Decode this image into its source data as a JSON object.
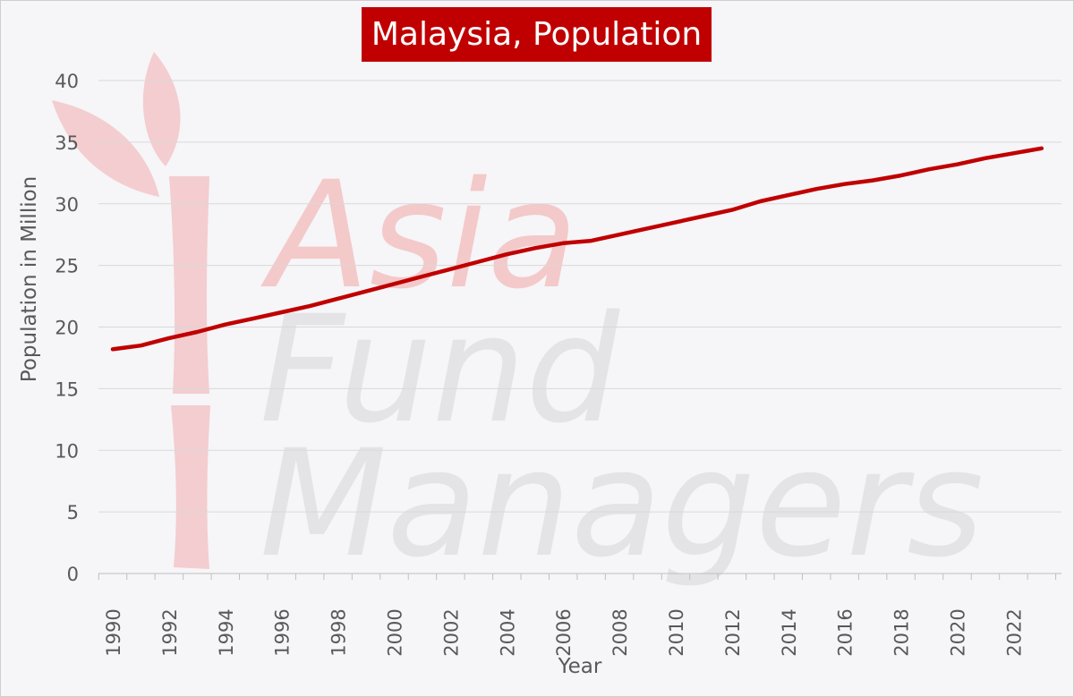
{
  "chart_data": {
    "type": "line",
    "title": "Malaysia, Population",
    "xlabel": "Year",
    "ylabel": "Population in Million",
    "xlim": [
      1990,
      2023
    ],
    "ylim": [
      0,
      40
    ],
    "yticks": [
      0,
      5,
      10,
      15,
      20,
      25,
      30,
      35,
      40
    ],
    "xticks": [
      1990,
      1992,
      1994,
      1996,
      1998,
      2000,
      2002,
      2004,
      2006,
      2008,
      2010,
      2012,
      2014,
      2016,
      2018,
      2020,
      2022
    ],
    "grid": true,
    "legend": "none",
    "series": [
      {
        "color": "#c00000",
        "x": [
          1990,
          1991,
          1992,
          1993,
          1994,
          1995,
          1996,
          1997,
          1998,
          1999,
          2000,
          2001,
          2002,
          2003,
          2004,
          2005,
          2006,
          2007,
          2008,
          2009,
          2010,
          2011,
          2012,
          2013,
          2014,
          2015,
          2016,
          2017,
          2018,
          2019,
          2020,
          2021,
          2022,
          2023
        ],
        "y": [
          18.2,
          18.5,
          19.1,
          19.6,
          20.2,
          20.7,
          21.2,
          21.7,
          22.3,
          22.9,
          23.5,
          24.1,
          24.7,
          25.3,
          25.9,
          26.4,
          26.8,
          27.0,
          27.5,
          28.0,
          28.5,
          29.0,
          29.5,
          30.2,
          30.7,
          31.2,
          31.6,
          31.9,
          32.3,
          32.8,
          33.2,
          33.7,
          34.1,
          34.5
        ]
      }
    ]
  },
  "watermark": {
    "lines": [
      "Asia",
      "Fund",
      "Managers"
    ],
    "colors": {
      "asia": "#f3c9ca",
      "text": "#e4e3e5",
      "mark": "#f3c9ca"
    }
  },
  "colors": {
    "line": "#c00000",
    "grid": "#d9d9d9",
    "axis_text": "#595959",
    "background": "#f6f5f8"
  }
}
